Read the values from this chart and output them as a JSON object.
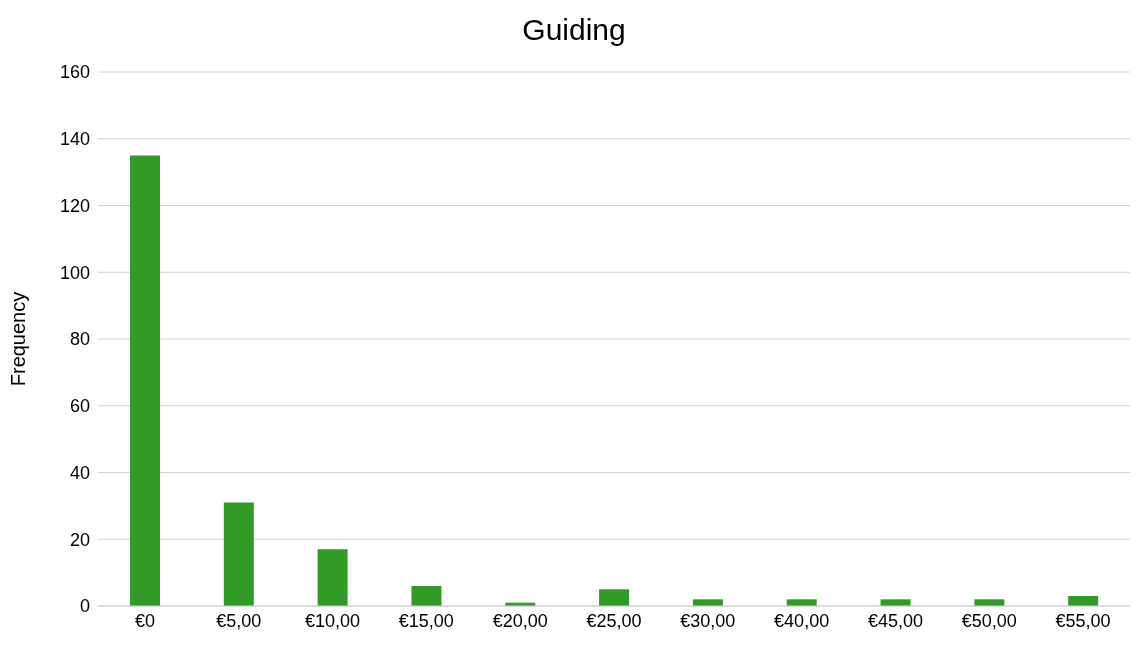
{
  "chart_data": {
    "type": "bar",
    "title": "Guiding",
    "ylabel": "Frequency",
    "categories": [
      "€0",
      "€5,00",
      "€10,00",
      "€15,00",
      "€20,00",
      "€25,00",
      "€30,00",
      "€40,00",
      "€45,00",
      "€50,00",
      "€55,00"
    ],
    "values": [
      135,
      31,
      17,
      6,
      1,
      5,
      2,
      2,
      2,
      2,
      3
    ],
    "color": "#339a29",
    "ylim": [
      0,
      160
    ],
    "yticks": [
      0,
      20,
      40,
      60,
      80,
      100,
      120,
      140,
      160
    ],
    "grid": "y"
  }
}
